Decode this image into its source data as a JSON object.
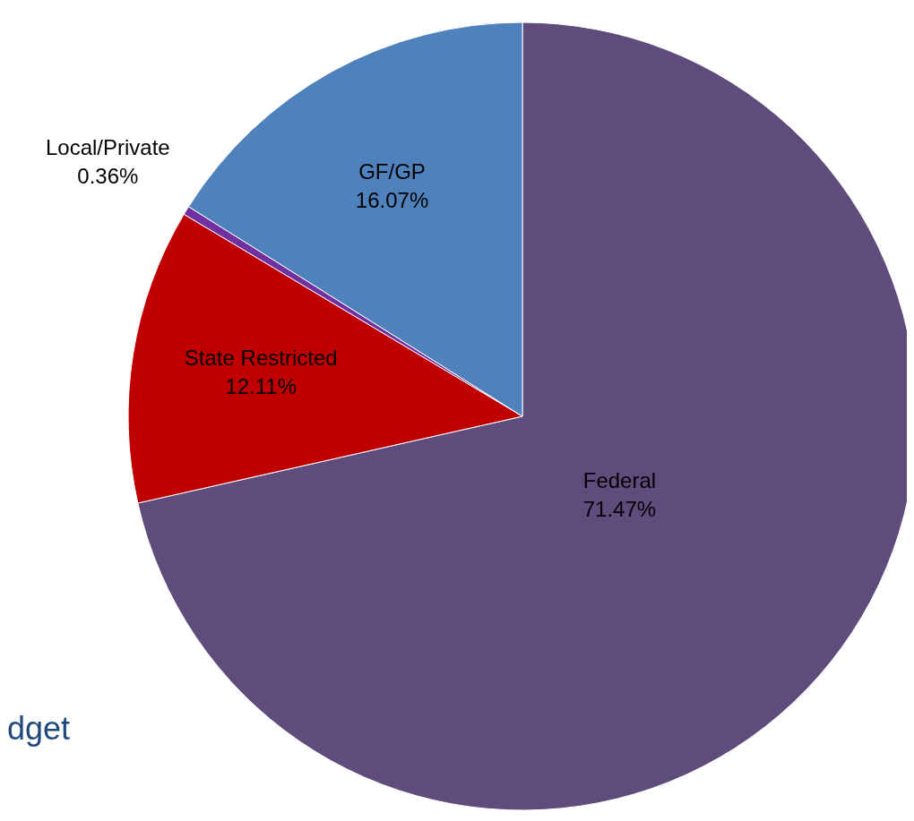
{
  "chart_data": {
    "type": "pie",
    "categories": [
      "Federal",
      "State Restricted",
      "Local/Private",
      "GF/GP"
    ],
    "values": [
      71.47,
      12.11,
      0.36,
      16.07
    ],
    "value_labels": [
      "71.47%",
      "12.11%",
      "0.36%",
      "16.07%"
    ],
    "colors": [
      "#604c7c",
      "#c00000",
      "#7030a0",
      "#4f81bd"
    ],
    "annotations": [
      "dget"
    ]
  }
}
